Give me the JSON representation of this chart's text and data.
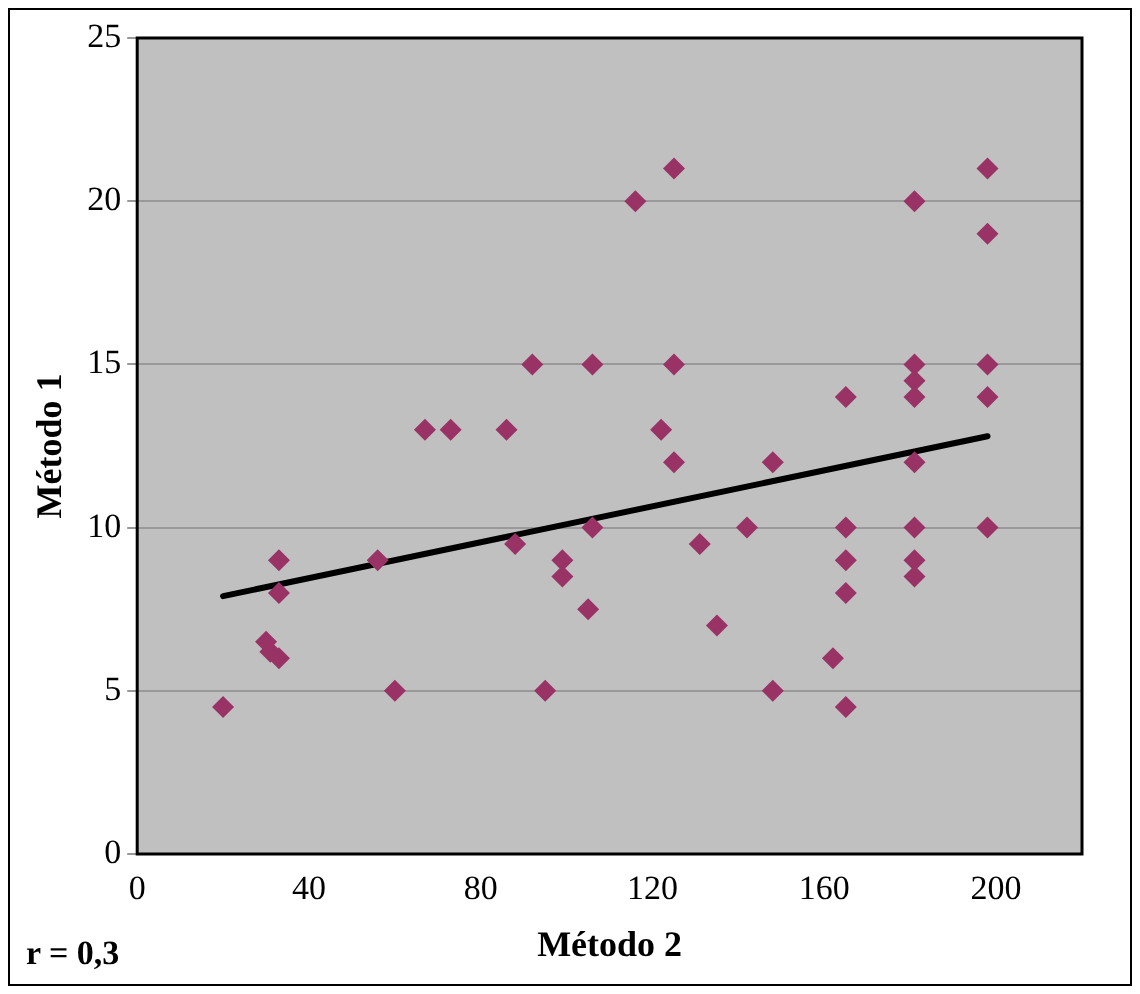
{
  "chart_data": {
    "type": "scatter",
    "xlabel": "Método 2",
    "ylabel": "Método 1",
    "annotations": [
      "r = 0,3"
    ],
    "xlim": [
      0,
      220
    ],
    "xticks": [
      0,
      40,
      80,
      120,
      160,
      200
    ],
    "ylim": [
      0,
      25
    ],
    "yticks": [
      0,
      5,
      10,
      15,
      20,
      25
    ],
    "grid": "y",
    "legend": false,
    "series": [
      {
        "marker": "diamond",
        "color": "#993366",
        "x": [
          20,
          30,
          31,
          33,
          33,
          33,
          56,
          60,
          67,
          73,
          86,
          88,
          92,
          95,
          99,
          99,
          105,
          106,
          106,
          116,
          122,
          125,
          125,
          125,
          131,
          135,
          142,
          148,
          148,
          162,
          165,
          165,
          165,
          165,
          165,
          181,
          181,
          181,
          181,
          181,
          181,
          181,
          181,
          198,
          198,
          198,
          198,
          198
        ],
        "values": [
          4.5,
          6.5,
          6.2,
          6,
          8,
          9,
          9,
          5,
          13,
          13,
          13,
          9.5,
          15,
          5,
          9,
          8.5,
          7.5,
          15,
          10,
          20,
          13,
          21,
          15,
          12,
          9.5,
          7,
          10,
          12,
          5,
          6,
          14,
          10,
          9,
          8,
          4.5,
          20,
          15,
          14.5,
          14,
          12,
          10,
          9,
          8.5,
          21,
          19,
          15,
          14,
          10
        ]
      },
      {
        "type": "line",
        "marker": "none",
        "color": "#000000",
        "x": [
          20,
          198
        ],
        "values": [
          7.9,
          12.8
        ]
      }
    ]
  }
}
